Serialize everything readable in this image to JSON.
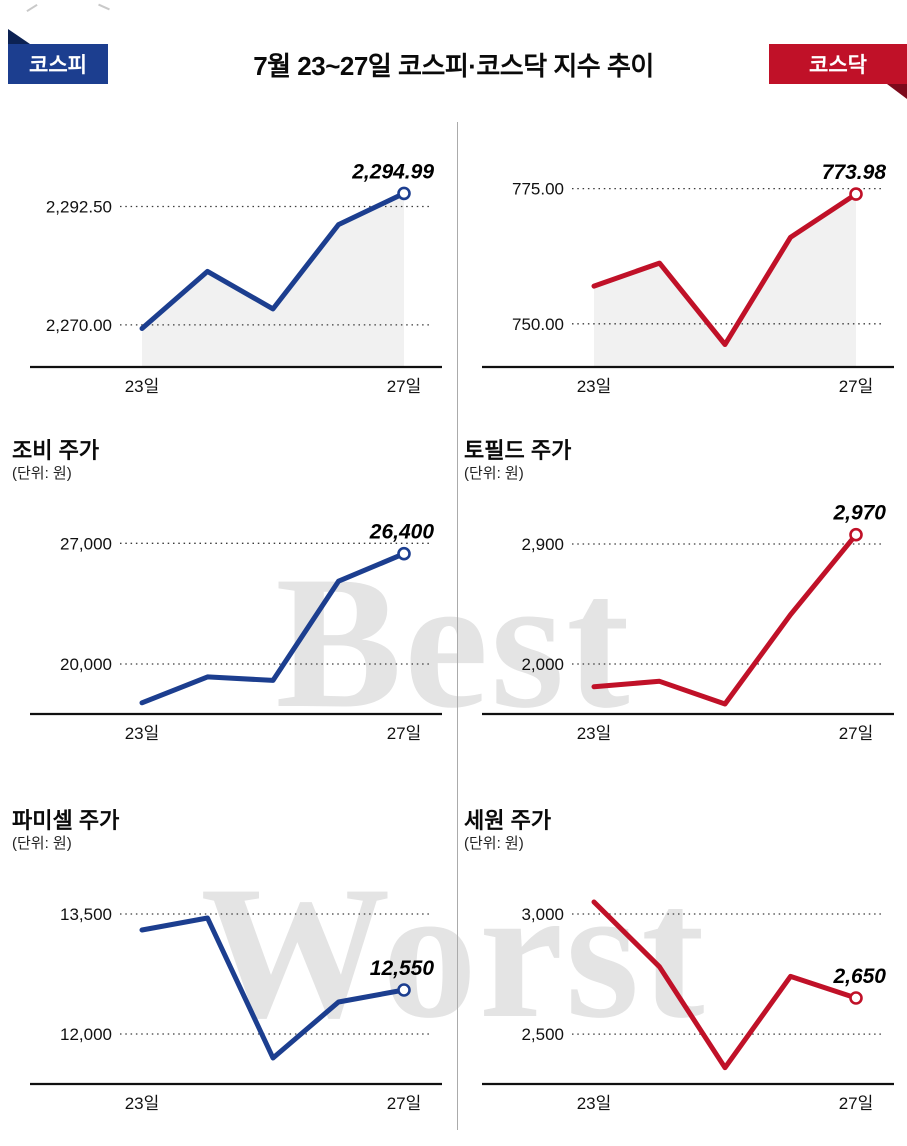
{
  "header": {
    "title": "7월 23~27일 코스피·코스닥 지수 추이",
    "left_badge": "코스피",
    "right_badge": "코스닥"
  },
  "watermarks": {
    "best": "Best",
    "worst": "Worst"
  },
  "colors": {
    "kospi_blue": "#1c3e8f",
    "kosdaq_red": "#c01128",
    "watermark_gray": "#e4e4e4",
    "area_fill": "#f1f1f1"
  },
  "chart_data": [
    {
      "id": "kospi-index",
      "type": "line",
      "color": "#1c3e8f",
      "area_fill": true,
      "x_ticks": [
        "23일",
        "27일"
      ],
      "values": [
        2269.31,
        2280.16,
        2273.03,
        2289.06,
        2294.99
      ],
      "ylim": [
        2262,
        2300
      ],
      "gridlines": [
        {
          "value": 2292.5,
          "label": "2,292.50"
        },
        {
          "value": 2270.0,
          "label": "2,270.00"
        }
      ],
      "end_label": "2,294.99"
    },
    {
      "id": "kosdaq-index",
      "type": "line",
      "color": "#c01128",
      "area_fill": true,
      "x_ticks": [
        "23일",
        "27일"
      ],
      "values": [
        756.96,
        761.23,
        746.16,
        766.0,
        773.98
      ],
      "ylim": [
        742,
        779
      ],
      "gridlines": [
        {
          "value": 775.0,
          "label": "775.00"
        },
        {
          "value": 750.0,
          "label": "750.00"
        }
      ],
      "end_label": "773.98"
    },
    {
      "id": "jobi",
      "type": "line",
      "title": "조비 주가",
      "unit_label": "(단위: 원)",
      "color": "#1c3e8f",
      "area_fill": false,
      "x_ticks": [
        "23일",
        "27일"
      ],
      "values": [
        17750,
        19250,
        19050,
        24800,
        26400
      ],
      "ylim": [
        17100,
        28700
      ],
      "gridlines": [
        {
          "value": 27000,
          "label": "27,000"
        },
        {
          "value": 20000,
          "label": "20,000"
        }
      ],
      "end_label": "26,400"
    },
    {
      "id": "topfield",
      "type": "line",
      "title": "토필드 주가",
      "unit_label": "(단위: 원)",
      "color": "#c01128",
      "area_fill": false,
      "x_ticks": [
        "23일",
        "27일"
      ],
      "values": [
        1830,
        1870,
        1700,
        2370,
        2970
      ],
      "ylim": [
        1625,
        3125
      ],
      "gridlines": [
        {
          "value": 2900,
          "label": "2,900"
        },
        {
          "value": 2000,
          "label": "2,000"
        }
      ],
      "end_label": "2,970"
    },
    {
      "id": "pharmicell",
      "type": "line",
      "title": "파미셀 주가",
      "unit_label": "(단위: 원)",
      "color": "#1c3e8f",
      "area_fill": false,
      "x_ticks": [
        "23일",
        "27일"
      ],
      "values": [
        13300,
        13450,
        11700,
        12400,
        12550
      ],
      "ylim": [
        11375,
        13875
      ],
      "gridlines": [
        {
          "value": 13500,
          "label": "13,500"
        },
        {
          "value": 12000,
          "label": "12,000"
        }
      ],
      "end_label": "12,550"
    },
    {
      "id": "sewon",
      "type": "line",
      "title": "세원 주가",
      "unit_label": "(단위: 원)",
      "color": "#c01128",
      "area_fill": false,
      "x_ticks": [
        "23일",
        "27일"
      ],
      "values": [
        3050,
        2780,
        2360,
        2740,
        2650
      ],
      "ylim": [
        2292,
        3125
      ],
      "gridlines": [
        {
          "value": 3000,
          "label": "3,000"
        },
        {
          "value": 2500,
          "label": "2,500"
        }
      ],
      "end_label": "2,650"
    }
  ]
}
